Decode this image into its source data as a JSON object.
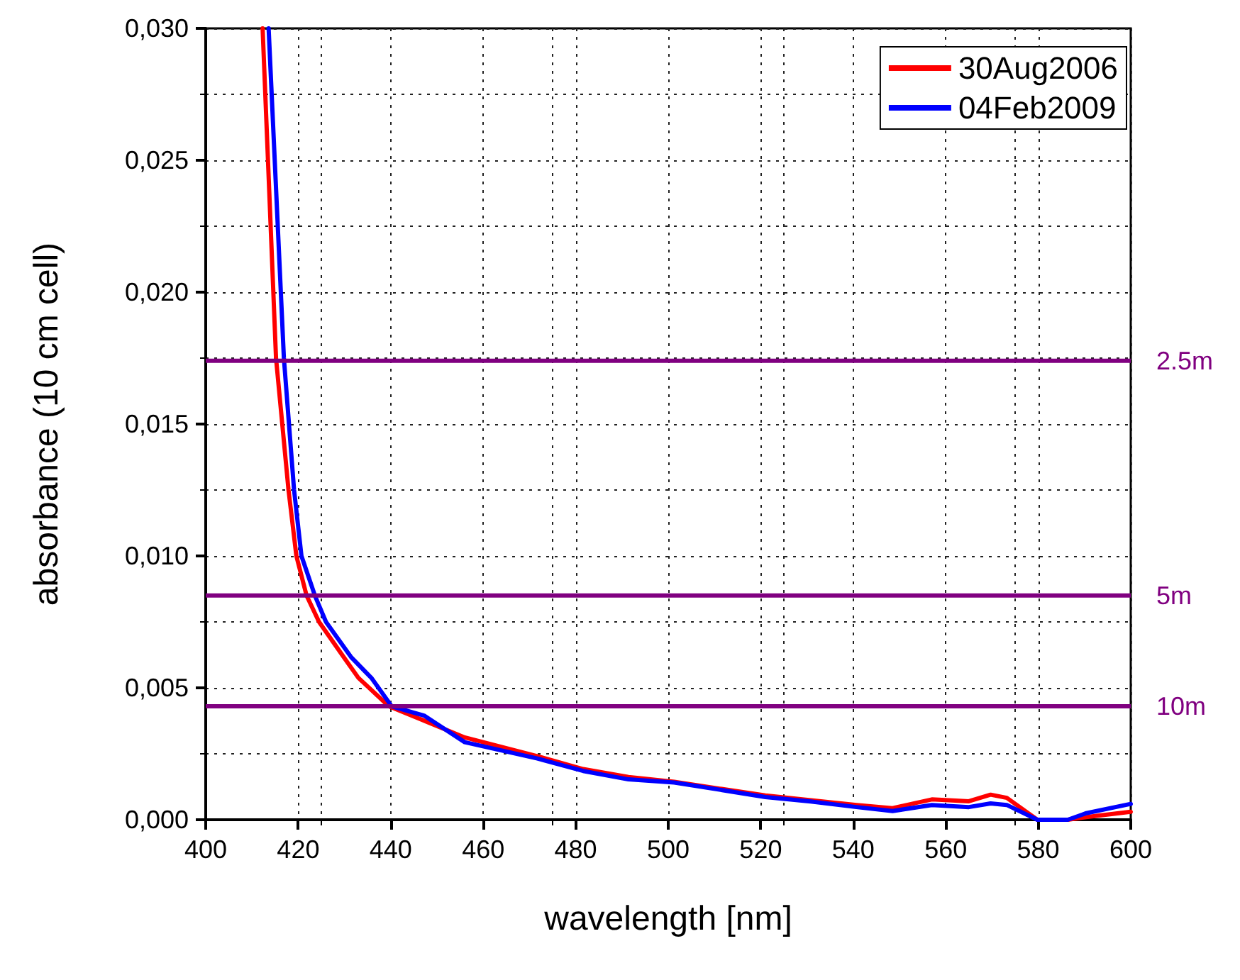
{
  "chart_data": {
    "type": "line",
    "xlabel": "wavelength [nm]",
    "ylabel": "absorbance (10 cm cell)",
    "xlim": [
      400,
      600
    ],
    "xticks": [
      400,
      420,
      440,
      460,
      480,
      500,
      520,
      540,
      560,
      580,
      600
    ],
    "ylim": [
      0,
      0.03
    ],
    "yticks": [
      {
        "value": 0,
        "label": "0,000"
      },
      {
        "value": 0.005,
        "label": "0,005"
      },
      {
        "value": 0.01,
        "label": "0,010"
      },
      {
        "value": 0.015,
        "label": "0,015"
      },
      {
        "value": 0.02,
        "label": "0,020"
      },
      {
        "value": 0.025,
        "label": "0,025"
      },
      {
        "value": 0.03,
        "label": "0,030"
      }
    ],
    "grid": true,
    "legend": "top right",
    "line_style": "solid",
    "marker": "none",
    "series": [
      {
        "name": "30Aug2006",
        "color": "#ff0000",
        "x": [
          412.3,
          415.2,
          417.9,
          419.6,
          421.8,
          424.5,
          429.9,
          433,
          439.6,
          448,
          456,
          471.7,
          481.6,
          491.4,
          501.3,
          511.1,
          521,
          530.8,
          540.7,
          548.5,
          557,
          565,
          569.7,
          573.2,
          579.8,
          586.4,
          590.4,
          600
        ],
        "values": [
          0.03,
          0.0175,
          0.0125,
          0.01,
          0.0085,
          0.0075,
          0.00615,
          0.00538,
          0.0043,
          0.0037,
          0.00312,
          0.00241,
          0.00192,
          0.00162,
          0.00144,
          0.00118,
          0.00092,
          0.00074,
          0.00056,
          0.00044,
          0.00077,
          0.0007,
          0.00095,
          0.00083,
          0,
          0,
          0.0001,
          0.0003
        ]
      },
      {
        "name": "04Feb2009",
        "color": "#0000ff",
        "x": [
          413.6,
          416.9,
          419.1,
          420.7,
          423.6,
          426,
          431.5,
          435.8,
          440.2,
          447.2,
          456,
          471.7,
          481.6,
          491.4,
          501.3,
          511.1,
          521,
          530.8,
          540.7,
          548.5,
          557,
          565,
          569.7,
          573.2,
          579.8,
          586.4,
          590.4,
          600
        ],
        "values": [
          0.03,
          0.0175,
          0.0125,
          0.01,
          0.0085,
          0.0075,
          0.00615,
          0.00538,
          0.0043,
          0.00395,
          0.00294,
          0.00232,
          0.00185,
          0.00153,
          0.00141,
          0.00114,
          0.00086,
          0.00069,
          0.00048,
          0.00033,
          0.00056,
          0.00048,
          0.00062,
          0.00056,
          0,
          0,
          0.00025,
          0.0006
        ]
      }
    ],
    "ref_lines": [
      {
        "axis": "y",
        "value": 0.0174,
        "label": "2.5m",
        "color": "#800080"
      },
      {
        "axis": "y",
        "value": 0.0085,
        "label": "5m",
        "color": "#800080"
      },
      {
        "axis": "y",
        "value": 0.0043,
        "label": "10m",
        "color": "#800080"
      }
    ]
  }
}
